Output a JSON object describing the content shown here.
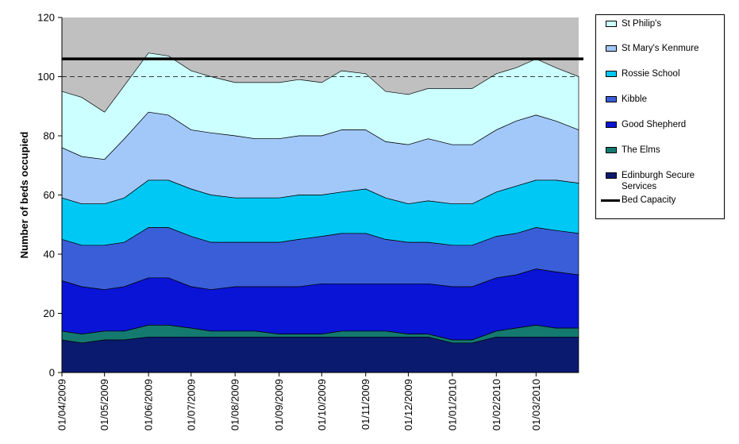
{
  "chart_data": {
    "type": "area",
    "stacked": true,
    "title": "",
    "xlabel": "",
    "ylabel": "Number of beds occupied",
    "ylim": [
      0,
      120
    ],
    "yticks": [
      0,
      20,
      40,
      60,
      80,
      100,
      120
    ],
    "x_start": "01/04/2009",
    "x_end": "31/03/2010",
    "xtick_labels": [
      "01/04/2009",
      "01/05/2009",
      "01/06/2009",
      "01/07/2009",
      "01/08/2009",
      "01/09/2009",
      "01/10/2009",
      "01/11/2009",
      "01/12/2009",
      "01/01/2010",
      "01/02/2010",
      "01/03/2010"
    ],
    "x": [
      "01/04/2009",
      "15/04/2009",
      "01/05/2009",
      "15/05/2009",
      "01/06/2009",
      "15/06/2009",
      "01/07/2009",
      "15/07/2009",
      "01/08/2009",
      "15/08/2009",
      "01/09/2009",
      "15/09/2009",
      "01/10/2009",
      "15/10/2009",
      "01/11/2009",
      "15/11/2009",
      "01/12/2009",
      "15/12/2009",
      "01/01/2010",
      "15/01/2010",
      "01/02/2010",
      "15/02/2010",
      "01/03/2010",
      "15/03/2010",
      "31/03/2010"
    ],
    "series": [
      {
        "name": "Edinburgh Secure Services",
        "color": "#0a1a6e",
        "values": [
          11,
          10,
          11,
          11,
          12,
          12,
          12,
          12,
          12,
          12,
          12,
          12,
          12,
          12,
          12,
          12,
          12,
          12,
          10,
          10,
          12,
          12,
          12,
          12,
          12
        ]
      },
      {
        "name": "The Elms",
        "color": "#147a70",
        "values": [
          3,
          3,
          3,
          3,
          4,
          4,
          3,
          2,
          2,
          2,
          1,
          1,
          1,
          2,
          2,
          2,
          1,
          1,
          1,
          1,
          2,
          3,
          4,
          3,
          3
        ]
      },
      {
        "name": "Good Shepherd",
        "color": "#0a14d6",
        "values": [
          17,
          16,
          14,
          15,
          16,
          16,
          14,
          14,
          15,
          15,
          16,
          16,
          17,
          16,
          16,
          16,
          17,
          17,
          18,
          18,
          18,
          18,
          19,
          19,
          18
        ]
      },
      {
        "name": "Kibble",
        "color": "#3a5ed8",
        "values": [
          14,
          14,
          15,
          15,
          17,
          17,
          17,
          16,
          15,
          15,
          15,
          16,
          16,
          17,
          17,
          15,
          14,
          14,
          14,
          14,
          14,
          14,
          14,
          14,
          14
        ]
      },
      {
        "name": "Rossie School",
        "color": "#00c8f5",
        "values": [
          14,
          14,
          14,
          15,
          16,
          16,
          16,
          16,
          15,
          15,
          15,
          15,
          14,
          14,
          15,
          14,
          13,
          14,
          14,
          14,
          15,
          16,
          16,
          17,
          17
        ]
      },
      {
        "name": "St Mary's Kenmure",
        "color": "#a2c8fa",
        "values": [
          17,
          16,
          15,
          20,
          23,
          22,
          20,
          21,
          21,
          20,
          20,
          20,
          20,
          21,
          20,
          19,
          20,
          21,
          20,
          20,
          21,
          22,
          22,
          20,
          18
        ]
      },
      {
        "name": "St Philip's",
        "color": "#ccffff",
        "values": [
          19,
          20,
          16,
          18,
          20,
          20,
          20,
          19,
          18,
          19,
          19,
          19,
          18,
          20,
          19,
          17,
          17,
          17,
          19,
          19,
          19,
          18,
          19,
          18,
          18
        ]
      }
    ],
    "bed_capacity": {
      "name": "Bed Capacity",
      "value": 106,
      "color": "#000000"
    },
    "reference_line": {
      "value": 100,
      "style": "dashed"
    },
    "plot_background": "#c0c0c0",
    "legend_position": "right"
  }
}
